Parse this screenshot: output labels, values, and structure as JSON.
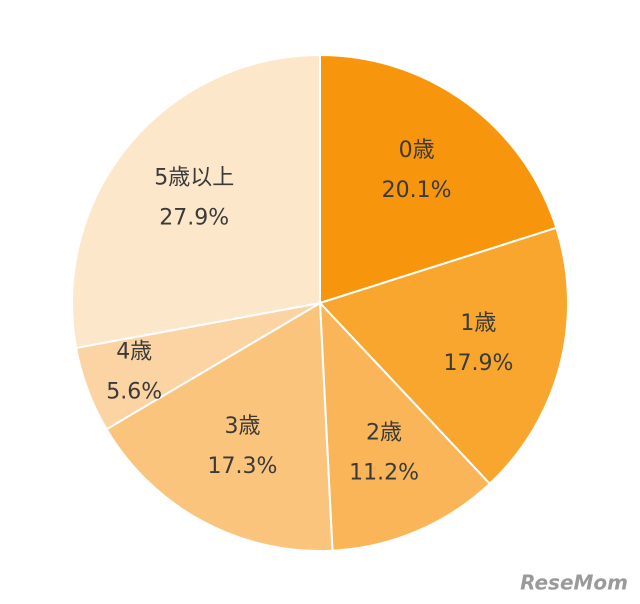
{
  "chart_data": {
    "type": "pie",
    "categories": [
      "0歳",
      "1歳",
      "2歳",
      "3歳",
      "4歳",
      "5歳以上"
    ],
    "values": [
      20.1,
      17.9,
      11.2,
      17.3,
      5.6,
      27.9
    ],
    "value_labels": [
      "20.1%",
      "17.9%",
      "11.2%",
      "17.3%",
      "5.6%",
      "27.9%"
    ],
    "colors": [
      "#f7950c",
      "#f9a62e",
      "#fab558",
      "#fbc47c",
      "#fcd3a2",
      "#fde7cb"
    ],
    "watermark": "ReseMom"
  }
}
